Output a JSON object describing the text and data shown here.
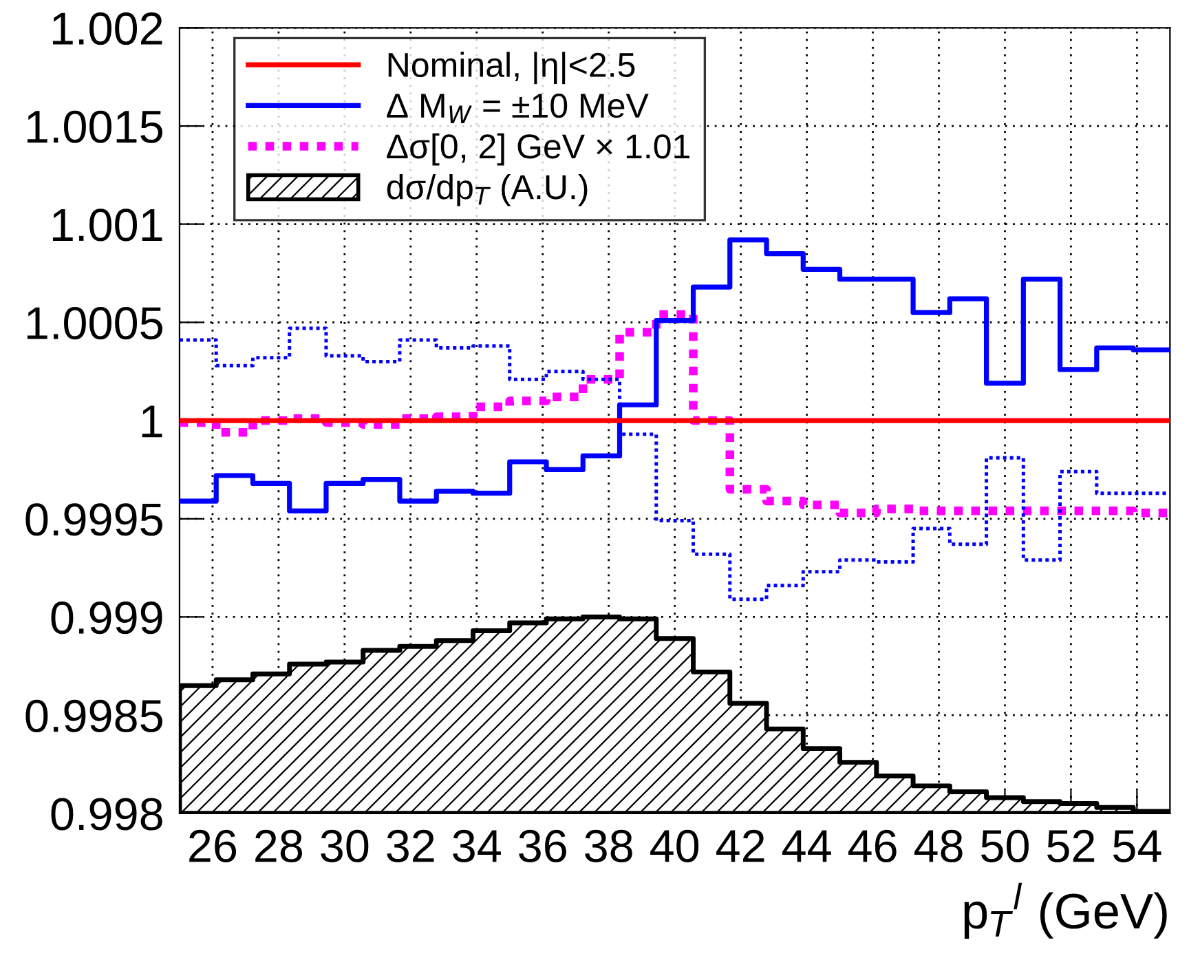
{
  "chart_data": {
    "type": "step",
    "x": [
      25,
      26.11,
      27.22,
      28.33,
      29.44,
      30.56,
      31.67,
      32.78,
      33.89,
      35,
      36.11,
      37.22,
      38.33,
      39.44,
      40.56,
      41.67,
      42.78,
      43.89,
      45,
      46.11,
      47.22,
      48.33,
      49.44,
      50.56,
      51.67,
      52.78,
      53.89,
      55
    ],
    "series": [
      {
        "name": "Nominal, |η|<2.5",
        "color": "#ff0000",
        "line_style": "solid",
        "values": [
          1,
          1,
          1,
          1,
          1,
          1,
          1,
          1,
          1,
          1,
          1,
          1,
          1,
          1,
          1,
          1,
          1,
          1,
          1,
          1,
          1,
          1,
          1,
          1,
          1,
          1,
          1,
          1
        ]
      },
      {
        "name": "Δ M$_{W}$ = ±10 MeV",
        "color": "#0000ff",
        "line_style": "solid",
        "values": [
          0.99959,
          0.99972,
          0.99968,
          0.99954,
          0.99968,
          0.9997,
          0.99959,
          0.99964,
          0.99963,
          0.99979,
          0.99975,
          0.99982,
          1.00008,
          1.00051,
          1.00068,
          1.00092,
          1.00085,
          1.00077,
          1.00072,
          1.00072,
          1.00055,
          1.00062,
          1.00019,
          1.00072,
          1.00026,
          1.00037,
          1.00036,
          1.00036
        ]
      },
      {
        "color": "#0000ff",
        "line_style": "dotted",
        "values": [
          1.00041,
          1.00028,
          1.00032,
          1.00047,
          1.00033,
          1.0003,
          1.00041,
          1.00037,
          1.00038,
          1.00021,
          1.00025,
          1.00021,
          0.99993,
          0.99949,
          0.99932,
          0.99909,
          0.99916,
          0.99923,
          0.99929,
          0.99928,
          0.99945,
          0.99937,
          0.99981,
          0.99929,
          0.99974,
          0.99963,
          0.99963,
          0.99963
        ]
      },
      {
        "name": "Δσ[0, 2] GeV × 1.01",
        "color": "#ff00ff",
        "line_style": "dotted",
        "values": [
          0.99999,
          0.99994,
          1.0,
          1.00001,
          0.99999,
          0.99998,
          1.00001,
          1.00002,
          1.00007,
          1.0001,
          1.00012,
          1.00021,
          1.00045,
          1.00054,
          1.0,
          0.99965,
          0.99959,
          0.99957,
          0.99953,
          0.99955,
          0.99954,
          0.99954,
          0.99954,
          0.99954,
          0.99954,
          0.99954,
          0.99953,
          0.99953
        ]
      },
      {
        "name": "dσ/dp$_{T}$ (A.U.)",
        "type": "area",
        "color": "#000000",
        "values": [
          0.99865,
          0.99868,
          0.99871,
          0.99876,
          0.99877,
          0.99883,
          0.99885,
          0.99888,
          0.99893,
          0.99897,
          0.99899,
          0.999,
          0.99899,
          0.99889,
          0.99872,
          0.99856,
          0.99843,
          0.99833,
          0.99826,
          0.99819,
          0.99814,
          0.99811,
          0.99808,
          0.99806,
          0.99805,
          0.99803,
          0.99801,
          0.99801
        ]
      }
    ],
    "xlabel": "p$_{T}$$^{l}$ (GeV)",
    "xlim": [
      25,
      55
    ],
    "xticks": [
      26,
      28,
      30,
      32,
      34,
      36,
      38,
      40,
      42,
      44,
      46,
      48,
      50,
      52,
      54
    ],
    "ylim": [
      0.998,
      1.002
    ],
    "yticks": [
      0.998,
      0.9985,
      0.999,
      0.9995,
      1,
      1.0005,
      1.001,
      1.0015,
      1.002
    ],
    "grid": true,
    "legend": "top left"
  }
}
